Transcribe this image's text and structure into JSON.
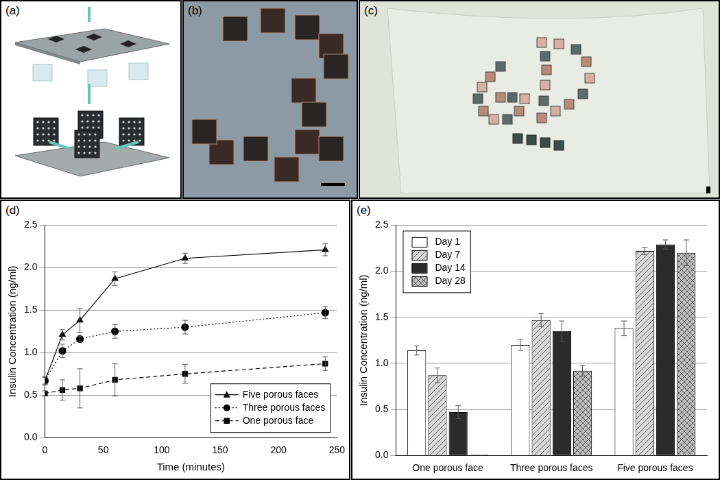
{
  "panel_labels": [
    "(a)",
    "(b)",
    "(c)",
    "(d)",
    "(e)"
  ],
  "chart_data": [
    {
      "type": "line",
      "x_label": "Time (minutes)",
      "y_label": "Insulin Concentration (ng/ml)",
      "x": [
        0,
        15,
        30,
        60,
        120,
        240
      ],
      "series": [
        {
          "name": "Five porous faces",
          "color": "#000000",
          "marker": "triangle",
          "line_style": "solid",
          "values": [
            0.67,
            1.21,
            1.38,
            1.87,
            2.11,
            2.21
          ],
          "errors": [
            0.05,
            0.06,
            0.14,
            0.08,
            0.06,
            0.07
          ]
        },
        {
          "name": "Three porous faces",
          "color": "#000000",
          "marker": "circle",
          "line_style": "dotted",
          "values": [
            0.67,
            1.02,
            1.16,
            1.25,
            1.3,
            1.47
          ],
          "errors": [
            0.04,
            0.08,
            0.03,
            0.08,
            0.08,
            0.07
          ]
        },
        {
          "name": "One porous face",
          "color": "#000000",
          "marker": "square",
          "line_style": "dashed",
          "values": [
            0.52,
            0.56,
            0.58,
            0.68,
            0.75,
            0.87
          ],
          "errors": [
            0.03,
            0.12,
            0.23,
            0.19,
            0.11,
            0.08
          ]
        }
      ],
      "xlim": [
        0,
        250
      ],
      "xticks": [
        0,
        50,
        100,
        150,
        200,
        250
      ],
      "ylim": [
        0,
        2.5
      ],
      "yticks": [
        {
          "value": 0,
          "label": "0.0"
        },
        0.5,
        {
          "value": 1,
          "label": "1.0"
        },
        1.5,
        {
          "value": 2,
          "label": "2.0"
        },
        2.5
      ],
      "grid": true,
      "legend": "bottom right"
    },
    {
      "type": "bar",
      "y_label": "Insulin Concentration (ng/ml)",
      "categories": [
        "One porous face",
        "Three porous faces",
        "Five porous faces"
      ],
      "series": [
        {
          "name": "Day 1",
          "color": "#ffffff",
          "values": [
            1.14,
            1.2,
            1.38
          ],
          "errors": [
            0.05,
            0.06,
            0.08
          ]
        },
        {
          "name": "Day 7",
          "color": "#d9d9d9",
          "values": [
            0.87,
            1.47,
            2.22
          ],
          "errors": [
            0.08,
            0.07,
            0.04
          ]
        },
        {
          "name": "Day 14",
          "color": "#2b2b2b",
          "values": [
            0.47,
            1.35,
            2.29
          ],
          "errors": [
            0.07,
            0.11,
            0.05
          ]
        },
        {
          "name": "Day 28",
          "color": "#bfbfbf",
          "values": [
            0.01,
            0.92,
            2.2
          ],
          "errors": [
            0,
            0.06,
            0.14
          ]
        }
      ],
      "ylim": [
        0,
        2.5
      ],
      "yticks": [
        {
          "value": 0,
          "label": "0.0"
        },
        0.5,
        {
          "value": 1,
          "label": "1.0"
        },
        1.5,
        {
          "value": 2,
          "label": "2.0"
        },
        2.5
      ],
      "grid": true,
      "legend": "top left"
    }
  ]
}
